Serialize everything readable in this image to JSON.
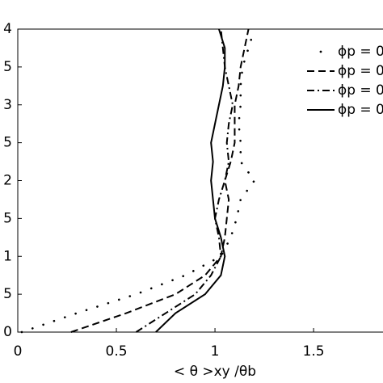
{
  "chart_data": {
    "type": "line",
    "xlabel": "< θ >xy /θb",
    "y": [
      0,
      0.25,
      0.5,
      0.75,
      1,
      1.25,
      1.5,
      1.75,
      2,
      2.25,
      2.5,
      2.75,
      3,
      3.25,
      3.5,
      3.75,
      4
    ],
    "series": [
      {
        "name": "ϕp = 0",
        "color": "#000000",
        "style": "dotted",
        "values": [
          0.02,
          0.3,
          0.6,
          0.85,
          1.03,
          1.08,
          1.11,
          1.13,
          1.2,
          1.13,
          1.13,
          1.12,
          1.13,
          1.13,
          1.14,
          1.17,
          1.2
        ]
      },
      {
        "name": "ϕp = 0",
        "color": "#000000",
        "style": "dashed",
        "values": [
          0.27,
          0.55,
          0.8,
          0.95,
          1.03,
          1.05,
          1.06,
          1.07,
          1.05,
          1.08,
          1.1,
          1.1,
          1.1,
          1.12,
          1.13,
          1.15,
          1.17
        ]
      },
      {
        "name": "ϕp = 0",
        "color": "#000000",
        "style": "dashdot",
        "values": [
          0.6,
          0.75,
          0.9,
          0.98,
          1.03,
          1.02,
          1.0,
          1.02,
          1.05,
          1.07,
          1.06,
          1.07,
          1.09,
          1.07,
          1.05,
          1.04,
          1.03
        ]
      },
      {
        "name": "ϕp = 0",
        "color": "#000000",
        "style": "solid",
        "values": [
          0.7,
          0.8,
          0.95,
          1.03,
          1.05,
          1.03,
          1.0,
          0.99,
          0.98,
          0.99,
          0.98,
          1.0,
          1.02,
          1.04,
          1.05,
          1.05,
          1.02
        ]
      }
    ],
    "xlim": [
      0,
      1.852
    ],
    "ylim": [
      0,
      4
    ],
    "xticks": [
      0,
      0.5,
      1,
      1.5
    ],
    "yticks": [
      0,
      {
        "value": 0.5,
        "label": "5"
      },
      1,
      {
        "value": 1.5,
        "label": "5"
      },
      2,
      {
        "value": 2.5,
        "label": "5"
      },
      3,
      {
        "value": 3.5,
        "label": "5"
      },
      4
    ],
    "legend": "upper right"
  }
}
